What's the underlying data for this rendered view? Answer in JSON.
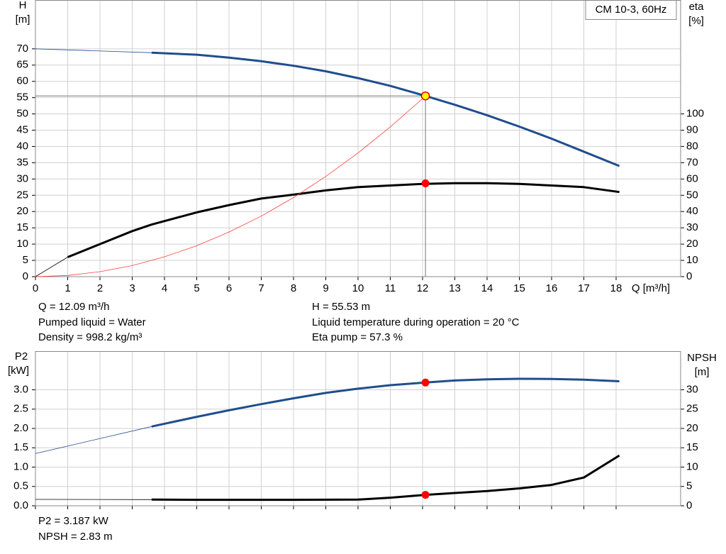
{
  "chart_data": [
    {
      "type": "line",
      "legend_text": "CM 10-3, 60Hz",
      "y_label": [
        "H",
        "[m]"
      ],
      "y2_label": [
        "eta",
        "[%]"
      ],
      "x_label": "Q [m³/h]",
      "xlim": [
        0,
        20
      ],
      "xticks": [
        0,
        1,
        2,
        3,
        4,
        5,
        6,
        7,
        8,
        9,
        10,
        11,
        12,
        13,
        14,
        15,
        16,
        17,
        18
      ],
      "ylim": [
        0,
        85
      ],
      "yticks": [
        0,
        5,
        10,
        15,
        20,
        25,
        30,
        35,
        40,
        45,
        50,
        55,
        60,
        65,
        70
      ],
      "y2lim": [
        0,
        170
      ],
      "y2ticks": [
        0,
        10,
        20,
        30,
        40,
        50,
        60,
        70,
        80,
        90,
        100
      ],
      "grid": true,
      "series": [
        {
          "axis": "y",
          "color": "#1f4e8c",
          "x": [
            0,
            3.6,
            5,
            6,
            7,
            8,
            9,
            10,
            11,
            12,
            12.09,
            13,
            14,
            15,
            16,
            17,
            18.1
          ],
          "values": [
            70,
            68.8,
            68.2,
            67.3,
            66.2,
            64.8,
            63.1,
            61,
            58.6,
            55.8,
            55.53,
            52.8,
            49.6,
            46.1,
            42.4,
            38.4,
            34
          ]
        },
        {
          "axis": "y2",
          "color": "#000000",
          "x": [
            0,
            1,
            2,
            3,
            3.6,
            5,
            6,
            7,
            8,
            9,
            10,
            11,
            12,
            13,
            14,
            15,
            16,
            17,
            18.1
          ],
          "values": [
            0,
            12,
            20,
            28,
            32,
            39.5,
            44,
            48,
            50.4,
            53,
            55,
            56,
            57,
            57.4,
            57.4,
            57,
            56,
            55,
            52
          ]
        },
        {
          "axis": "y",
          "color": "#ff4040",
          "style": "thin",
          "x": [
            0,
            1,
            2,
            3,
            4,
            5,
            6,
            7,
            8,
            9,
            10,
            11,
            12,
            12.09
          ],
          "values": [
            0,
            0.38,
            1.52,
            3.4,
            6.1,
            9.5,
            13.7,
            18.6,
            24.3,
            30.8,
            38,
            46,
            54.7,
            55.53
          ]
        }
      ],
      "markers": [
        {
          "axis": "y2",
          "x": 12.09,
          "y": 57.3,
          "color": "#ff0000"
        },
        {
          "axis": "y",
          "x": 12.09,
          "y": 55.53,
          "color": "#ffff00"
        }
      ],
      "duty_point": {
        "x": 12.09,
        "y": 55.53
      },
      "annotations": [
        "Q = 12.09 m³/h",
        "Pumped liquid = Water",
        "Density = 998.2 kg/m³",
        "H = 55.53 m",
        "Liquid temperature during operation = 20 °C",
        "Eta pump = 57.3 %"
      ]
    },
    {
      "type": "line",
      "y_label": [
        "P2",
        "[kW]"
      ],
      "y2_label": [
        "NPSH",
        "[m]"
      ],
      "xlim": [
        0,
        20
      ],
      "xticks": [
        0,
        1,
        2,
        3,
        4,
        5,
        6,
        7,
        8,
        9,
        10,
        11,
        12,
        13,
        14,
        15,
        16,
        17,
        18
      ],
      "ylim": [
        0,
        4
      ],
      "yticks": [
        {
          "value": 0,
          "label": "0.0"
        },
        {
          "value": 0.5,
          "label": "0.5"
        },
        {
          "value": 1,
          "label": "1.0"
        },
        {
          "value": 1.5,
          "label": "1.5"
        },
        {
          "value": 2,
          "label": "2.0"
        },
        {
          "value": 2.5,
          "label": "2.5"
        },
        {
          "value": 3,
          "label": "3.0"
        }
      ],
      "y2lim": [
        0,
        40
      ],
      "y2ticks": [
        0,
        5,
        10,
        15,
        20,
        25,
        30
      ],
      "grid": true,
      "series": [
        {
          "axis": "y",
          "color": "#1f4e8c",
          "x": [
            0,
            3.6,
            5,
            6,
            7,
            8,
            9,
            10,
            11,
            12.09,
            13,
            14,
            15,
            16,
            17,
            18.1
          ],
          "values": [
            1.35,
            2.05,
            2.3,
            2.47,
            2.63,
            2.78,
            2.92,
            3.03,
            3.12,
            3.187,
            3.24,
            3.27,
            3.285,
            3.28,
            3.26,
            3.22
          ]
        },
        {
          "axis": "y2",
          "color": "#000000",
          "x": [
            0,
            3.6,
            5,
            8,
            10,
            11,
            12.09,
            13,
            14,
            15,
            16,
            17,
            18.1
          ],
          "values": [
            1.65,
            1.6,
            1.55,
            1.55,
            1.6,
            2.1,
            2.83,
            3.3,
            3.8,
            4.5,
            5.4,
            7.3,
            13
          ]
        }
      ],
      "markers": [
        {
          "axis": "y",
          "x": 12.09,
          "y": 3.187,
          "color": "#ff0000"
        },
        {
          "axis": "y2",
          "x": 12.09,
          "y": 2.83,
          "color": "#ff0000"
        }
      ],
      "annotations": [
        "P2 = 3.187 kW",
        "NPSH = 2.83 m"
      ]
    }
  ]
}
